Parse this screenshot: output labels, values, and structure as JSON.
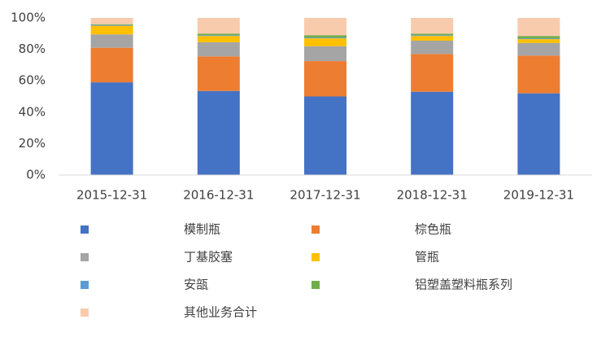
{
  "chart_data": {
    "type": "stacked_bar",
    "categories": [
      "2015-12-31",
      "2016-12-31",
      "2017-12-31",
      "2018-12-31",
      "2019-12-31"
    ],
    "series": [
      {
        "name": "模制瓶",
        "color": "#4472c4",
        "values": [
          59,
          53.5,
          50,
          53,
          52
        ]
      },
      {
        "name": "棕色瓶",
        "color": "#ed7d31",
        "values": [
          22,
          22,
          22.5,
          24,
          24
        ]
      },
      {
        "name": "丁基胶塞",
        "color": "#a5a5a5",
        "values": [
          8.5,
          9,
          9.5,
          8.5,
          8
        ]
      },
      {
        "name": "管瓶",
        "color": "#ffc000",
        "values": [
          5.5,
          4,
          5,
          3,
          2.5
        ]
      },
      {
        "name": "安瓿",
        "color": "#5b9bd5",
        "values": [
          0.5,
          0.5,
          0.5,
          0.5,
          0.5
        ]
      },
      {
        "name": "铝塑盖塑料瓶系列",
        "color": "#70ad47",
        "values": [
          0.5,
          1,
          1.5,
          1,
          1.5
        ]
      },
      {
        "name": "其他业务合计",
        "color": "#f8cbad",
        "values": [
          4,
          10,
          11,
          10,
          11.5
        ]
      }
    ],
    "ylim": [
      0,
      100
    ],
    "yticks": [
      {
        "value": 0,
        "label": "0%"
      },
      {
        "value": 20,
        "label": "20%"
      },
      {
        "value": 40,
        "label": "40%"
      },
      {
        "value": 60,
        "label": "60%"
      },
      {
        "value": 80,
        "label": "80%"
      },
      {
        "value": 100,
        "label": "100%"
      }
    ],
    "grid": false
  }
}
